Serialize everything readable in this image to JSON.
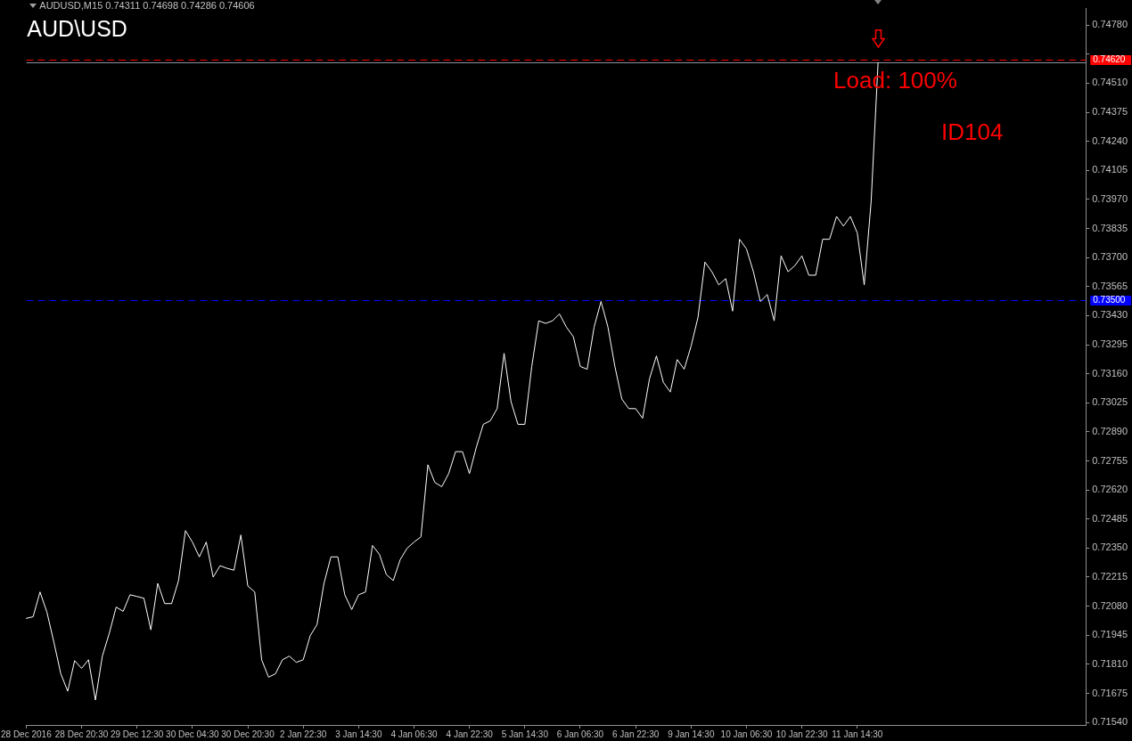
{
  "chart_data": {
    "type": "line",
    "title": "AUD\\USD",
    "subtitle": "AUDUSD,M15 0.74311 0.74698 0.74286 0.74606",
    "categories": [
      "28 Dec 2016",
      null,
      null,
      null,
      null,
      null,
      null,
      null,
      "28 Dec 20:30",
      null,
      null,
      null,
      null,
      null,
      null,
      null,
      "29 Dec 12:30",
      null,
      null,
      null,
      null,
      null,
      null,
      null,
      "30 Dec 04:30",
      null,
      null,
      null,
      null,
      null,
      null,
      null,
      "30 Dec 20:30",
      null,
      null,
      null,
      null,
      null,
      null,
      null,
      "2 Jan 22:30",
      null,
      null,
      null,
      null,
      null,
      null,
      null,
      "3 Jan 14:30",
      null,
      null,
      null,
      null,
      null,
      null,
      null,
      "4 Jan 06:30",
      null,
      null,
      null,
      null,
      null,
      null,
      null,
      "4 Jan 22:30",
      null,
      null,
      null,
      null,
      null,
      null,
      null,
      "5 Jan 14:30",
      null,
      null,
      null,
      null,
      null,
      null,
      null,
      "6 Jan 06:30",
      null,
      null,
      null,
      null,
      null,
      null,
      null,
      "6 Jan 22:30",
      null,
      null,
      null,
      null,
      null,
      null,
      null,
      "9 Jan 14:30",
      null,
      null,
      null,
      null,
      null,
      null,
      null,
      "10 Jan 06:30",
      null,
      null,
      null,
      null,
      null,
      null,
      null,
      "10 Jan 22:30",
      null,
      null,
      null,
      null,
      null,
      null,
      null,
      "11 Jan 14:30",
      null,
      null,
      null,
      null,
      null,
      null,
      null,
      null,
      null,
      null,
      null,
      null,
      null,
      null,
      null,
      null,
      null,
      null,
      null,
      null,
      null,
      null,
      null,
      null,
      null,
      null,
      null,
      null,
      null,
      null,
      null,
      null,
      null
    ],
    "series": [
      {
        "color": "#ffffff",
        "values": [
          0.72023,
          0.72031,
          0.72146,
          0.72052,
          0.71913,
          0.71766,
          0.71685,
          0.71827,
          0.71791,
          0.71831,
          0.71644,
          0.71848,
          0.71954,
          0.72076,
          0.72056,
          0.72133,
          0.72125,
          0.72117,
          0.7197,
          0.72186,
          0.72092,
          0.72092,
          0.72199,
          0.72431,
          0.72378,
          0.72309,
          0.72378,
          0.72215,
          0.72268,
          0.72256,
          0.72247,
          0.72411,
          0.72174,
          0.72146,
          0.71831,
          0.7175,
          0.71766,
          0.71831,
          0.71848,
          0.71819,
          0.71831,
          0.71942,
          0.71995,
          0.72186,
          0.72309,
          0.72309,
          0.72133,
          0.72064,
          0.72133,
          0.72146,
          0.72362,
          0.72321,
          0.72227,
          0.72199,
          0.72296,
          0.72349,
          0.72378,
          0.72402,
          0.72737,
          0.72655,
          0.72635,
          0.72696,
          0.72798,
          0.72798,
          0.72696,
          0.72819,
          0.72925,
          0.72941,
          0.72998,
          0.73255,
          0.73031,
          0.72925,
          0.72925,
          0.73194,
          0.73406,
          0.73394,
          0.73406,
          0.73438,
          0.73377,
          0.73332,
          0.73194,
          0.73181,
          0.73377,
          0.73496,
          0.73377,
          0.73194,
          0.73043,
          0.72998,
          0.72998,
          0.72953,
          0.73137,
          0.73243,
          0.7312,
          0.73075,
          0.73226,
          0.73181,
          0.73288,
          0.73422,
          0.73679,
          0.73634,
          0.73573,
          0.73602,
          0.73451,
          0.73785,
          0.7374,
          0.73634,
          0.73496,
          0.73528,
          0.73406,
          0.73708,
          0.73634,
          0.73663,
          0.73708,
          0.73618,
          0.73618,
          0.73785,
          0.73785,
          0.73891,
          0.73846,
          0.73891,
          0.73814,
          0.73573,
          0.73961,
          0.74606,
          null,
          null,
          null,
          null,
          null,
          null,
          null,
          null,
          null,
          null,
          null,
          null,
          null,
          null,
          null,
          null,
          null,
          null,
          null,
          null,
          null,
          null,
          null,
          null,
          null,
          null,
          null,
          null,
          null,
          null
        ]
      }
    ],
    "ylim": [
      0.71528,
      0.74857
    ],
    "yticks": [
      {
        "value": 0.7154,
        "label": "0.71540"
      },
      {
        "value": 0.71675,
        "label": "0.71675"
      },
      {
        "value": 0.7181,
        "label": "0.71810"
      },
      {
        "value": 0.71945,
        "label": "0.71945"
      },
      {
        "value": 0.7208,
        "label": "0.72080"
      },
      {
        "value": 0.72215,
        "label": "0.72215"
      },
      {
        "value": 0.7235,
        "label": "0.72350"
      },
      {
        "value": 0.72485,
        "label": "0.72485"
      },
      {
        "value": 0.7262,
        "label": "0.72620"
      },
      {
        "value": 0.72755,
        "label": "0.72755"
      },
      {
        "value": 0.7289,
        "label": "0.72890"
      },
      {
        "value": 0.73025,
        "label": "0.73025"
      },
      {
        "value": 0.7316,
        "label": "0.73160"
      },
      {
        "value": 0.73295,
        "label": "0.73295"
      },
      {
        "value": 0.7343,
        "label": "0.73430"
      },
      {
        "value": 0.73565,
        "label": "0.73565"
      },
      {
        "value": 0.737,
        "label": "0.73700"
      },
      {
        "value": 0.73835,
        "label": "0.73835"
      },
      {
        "value": 0.7397,
        "label": "0.73970"
      },
      {
        "value": 0.74105,
        "label": "0.74105"
      },
      {
        "value": 0.7424,
        "label": "0.74240"
      },
      {
        "value": 0.74375,
        "label": "0.74375"
      },
      {
        "value": 0.7451,
        "label": "0.74510"
      },
      {
        "value": 0.74645,
        "label": null
      },
      {
        "value": 0.7478,
        "label": "0.74780"
      }
    ],
    "ref_lines": [
      {
        "axis": "y",
        "value": 0.735,
        "label": "0.73500",
        "color": "#0000ff",
        "line_style": "dashed"
      },
      {
        "axis": "y",
        "value": 0.74606,
        "color": "#8c94a0",
        "line_style": "solid"
      },
      {
        "axis": "y",
        "value": 0.7462,
        "label": "0.74620",
        "color": "#ff0000",
        "line_style": "dashed"
      }
    ],
    "annotations": [
      "Load: 100%",
      "ID104"
    ],
    "grid": false,
    "legend": false,
    "marker": "none",
    "line_style": "solid"
  }
}
